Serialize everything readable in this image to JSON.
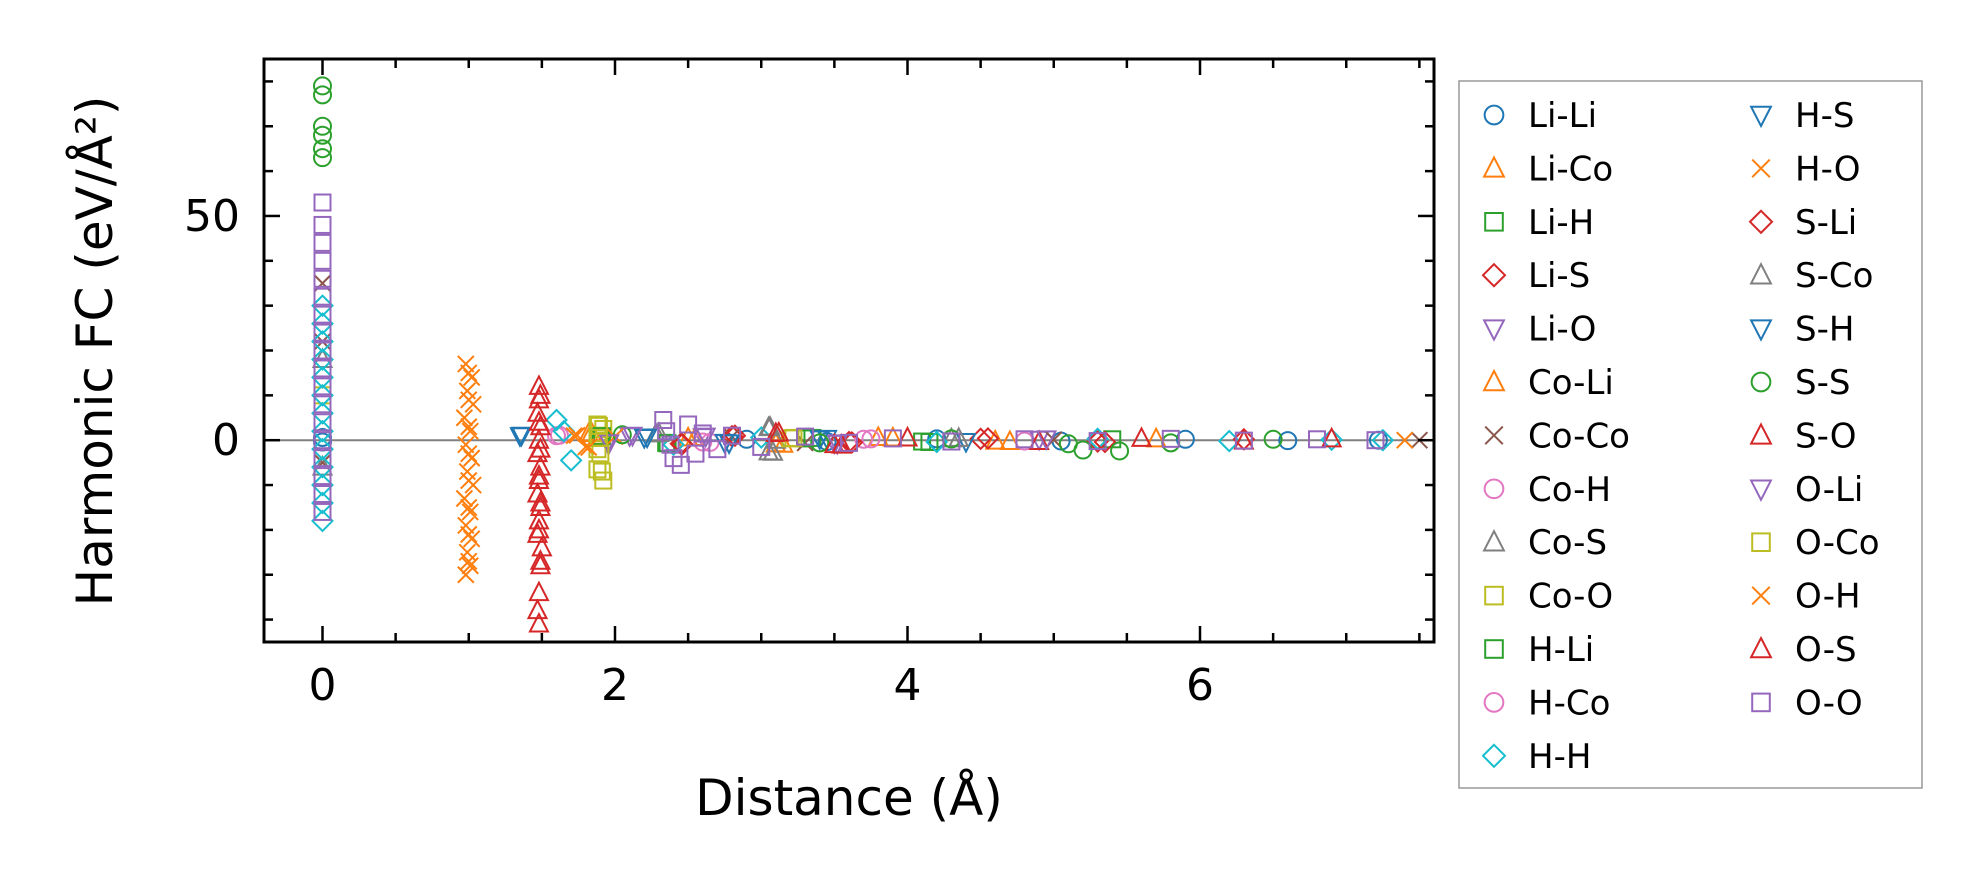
{
  "chart_data": {
    "type": "scatter",
    "title": "",
    "xlabel": "Distance (Å)",
    "ylabel": "Harmonic FC (eV/Å²)",
    "xlim": [
      -0.4,
      7.6
    ],
    "ylim": [
      -45,
      85
    ],
    "xticks": [
      0,
      2,
      4,
      6
    ],
    "xtick_labels": [
      "0",
      "2",
      "4",
      "6"
    ],
    "yticks": [
      0,
      50
    ],
    "ytick_labels": [
      "0",
      "50"
    ],
    "reference_line_y": 0,
    "grid": false,
    "legend_placement": "outside-right",
    "legend_columns": 2,
    "series": [
      {
        "name": "Li-Li",
        "marker": "circle",
        "color": "#1f77b4",
        "points": [
          [
            0,
            0.6
          ],
          [
            0,
            -0.4
          ],
          [
            2.9,
            0.2
          ],
          [
            3.45,
            -0.3
          ],
          [
            4.2,
            0.3
          ],
          [
            5.05,
            -0.2
          ],
          [
            5.9,
            0.2
          ],
          [
            6.6,
            -0.1
          ],
          [
            7.22,
            0.0
          ]
        ]
      },
      {
        "name": "Li-Co",
        "marker": "triangle-up",
        "color": "#ff7f0e",
        "points": [
          [
            1.82,
            1.5
          ],
          [
            2.5,
            0.5
          ],
          [
            3.1,
            -0.8
          ],
          [
            3.8,
            0.6
          ],
          [
            4.6,
            -0.2
          ],
          [
            5.7,
            0.3
          ]
        ]
      },
      {
        "name": "Li-H",
        "marker": "square",
        "color": "#2ca02c",
        "points": [
          [
            1.9,
            0.8
          ],
          [
            2.35,
            -0.6
          ],
          [
            3.3,
            0.4
          ],
          [
            4.1,
            -0.3
          ],
          [
            5.4,
            0.2
          ]
        ]
      },
      {
        "name": "Li-S",
        "marker": "diamond",
        "color": "#d62728",
        "points": [
          [
            2.45,
            -0.8
          ],
          [
            2.8,
            0.9
          ],
          [
            3.6,
            -0.4
          ],
          [
            4.5,
            0.3
          ],
          [
            5.3,
            -0.3
          ],
          [
            6.3,
            0.2
          ]
        ]
      },
      {
        "name": "Li-O",
        "marker": "triangle-down",
        "color": "#9467bd",
        "points": [
          [
            1.95,
            -0.5
          ],
          [
            2.1,
            1.0
          ],
          [
            2.6,
            0.8
          ],
          [
            3.5,
            -0.6
          ],
          [
            4.9,
            0.2
          ]
        ]
      },
      {
        "name": "Co-Li",
        "marker": "triangle-up",
        "color": "#ff7f0e",
        "points": [
          [
            1.84,
            1.6
          ],
          [
            2.55,
            0.6
          ],
          [
            3.15,
            -0.9
          ],
          [
            3.9,
            0.5
          ],
          [
            4.7,
            -0.3
          ]
        ]
      },
      {
        "name": "Co-Co",
        "marker": "x",
        "color": "#8c564b",
        "points": [
          [
            0,
            35
          ],
          [
            0,
            22
          ],
          [
            0,
            -5
          ],
          [
            2.8,
            0.8
          ],
          [
            3.3,
            -0.6
          ],
          [
            5.0,
            0.1
          ],
          [
            7.5,
            0.0
          ]
        ]
      },
      {
        "name": "Co-H",
        "marker": "circle",
        "color": "#e377c2",
        "points": [
          [
            1.6,
            1.0
          ],
          [
            2.6,
            -0.4
          ],
          [
            3.7,
            0.2
          ],
          [
            4.8,
            -0.2
          ]
        ]
      },
      {
        "name": "Co-S",
        "marker": "triangle-up",
        "color": "#7f7f7f",
        "points": [
          [
            0,
            18
          ],
          [
            0,
            -6
          ],
          [
            2.28,
            1.4
          ],
          [
            3.05,
            2.8
          ],
          [
            3.05,
            -2.6
          ],
          [
            3.1,
            0.0
          ],
          [
            4.3,
            0.3
          ]
        ]
      },
      {
        "name": "Co-O",
        "marker": "square",
        "color": "#bcbd22",
        "points": [
          [
            0,
            10
          ],
          [
            1.88,
            3.5
          ],
          [
            1.88,
            1.0
          ],
          [
            1.88,
            -2.0
          ],
          [
            1.88,
            -6.5
          ],
          [
            1.92,
            -9.0
          ],
          [
            1.92,
            2.5
          ],
          [
            3.2,
            0.4
          ]
        ]
      },
      {
        "name": "H-Li",
        "marker": "square",
        "color": "#2ca02c",
        "points": [
          [
            1.91,
            0.9
          ],
          [
            2.36,
            -0.7
          ],
          [
            3.35,
            0.5
          ],
          [
            4.15,
            -0.4
          ]
        ]
      },
      {
        "name": "H-Co",
        "marker": "circle",
        "color": "#e377c2",
        "points": [
          [
            1.62,
            1.1
          ],
          [
            2.65,
            -0.5
          ],
          [
            3.75,
            0.3
          ]
        ]
      },
      {
        "name": "H-H",
        "marker": "diamond",
        "color": "#17becf",
        "points": [
          [
            0,
            30
          ],
          [
            0,
            26
          ],
          [
            0,
            22
          ],
          [
            0,
            18
          ],
          [
            0,
            14
          ],
          [
            0,
            10
          ],
          [
            0,
            6
          ],
          [
            0,
            2
          ],
          [
            0,
            -2
          ],
          [
            0,
            -6
          ],
          [
            0,
            -10
          ],
          [
            0,
            -14
          ],
          [
            0,
            -18
          ],
          [
            1.6,
            4.5
          ],
          [
            1.7,
            -4.5
          ],
          [
            1.65,
            2.0
          ],
          [
            2.4,
            -1.0
          ],
          [
            3.0,
            0.6
          ],
          [
            4.2,
            -0.4
          ],
          [
            5.3,
            0.3
          ],
          [
            6.2,
            -0.2
          ],
          [
            6.9,
            0.1
          ],
          [
            7.25,
            0.0
          ]
        ]
      },
      {
        "name": "H-S",
        "marker": "triangle-down",
        "color": "#1f77b4",
        "points": [
          [
            1.35,
            1.0
          ],
          [
            2.2,
            0.6
          ],
          [
            2.75,
            -0.5
          ],
          [
            3.4,
            0.3
          ],
          [
            4.4,
            -0.3
          ]
        ]
      },
      {
        "name": "H-O",
        "marker": "x",
        "color": "#ff7f0e",
        "points": [
          [
            0.98,
            17
          ],
          [
            1.02,
            14
          ],
          [
            0.99,
            11
          ],
          [
            1.03,
            8
          ],
          [
            0.97,
            5
          ],
          [
            1.01,
            2
          ],
          [
            0.98,
            -1
          ],
          [
            1.02,
            -4
          ],
          [
            0.99,
            -7
          ],
          [
            1.03,
            -10
          ],
          [
            0.97,
            -13
          ],
          [
            1.01,
            -16
          ],
          [
            0.98,
            -19
          ],
          [
            1.02,
            -22
          ],
          [
            0.99,
            -25
          ],
          [
            1.01,
            -28
          ],
          [
            0.98,
            -30
          ],
          [
            1.72,
            1.0
          ],
          [
            1.8,
            -1.5
          ],
          [
            2.0,
            0.8
          ],
          [
            7.4,
            0.0
          ]
        ]
      },
      {
        "name": "S-Li",
        "marker": "diamond",
        "color": "#d62728",
        "points": [
          [
            2.46,
            -0.9
          ],
          [
            2.82,
            1.0
          ],
          [
            3.62,
            -0.5
          ],
          [
            4.55,
            0.4
          ],
          [
            5.35,
            -0.4
          ]
        ]
      },
      {
        "name": "S-Co",
        "marker": "triangle-up",
        "color": "#7f7f7f",
        "points": [
          [
            2.3,
            1.5
          ],
          [
            3.06,
            2.9
          ],
          [
            3.08,
            -2.7
          ],
          [
            4.35,
            0.4
          ]
        ]
      },
      {
        "name": "S-H",
        "marker": "triangle-down",
        "color": "#1f77b4",
        "points": [
          [
            1.36,
            1.1
          ],
          [
            2.22,
            0.7
          ],
          [
            2.78,
            -0.6
          ],
          [
            3.45,
            0.4
          ]
        ]
      },
      {
        "name": "S-S",
        "marker": "circle",
        "color": "#2ca02c",
        "points": [
          [
            0,
            79
          ],
          [
            0,
            77
          ],
          [
            0,
            70
          ],
          [
            0,
            68
          ],
          [
            0,
            65
          ],
          [
            0,
            63
          ],
          [
            2.05,
            1.2
          ],
          [
            3.4,
            -0.6
          ],
          [
            4.3,
            0.3
          ],
          [
            5.1,
            -0.8
          ],
          [
            5.2,
            -2.2
          ],
          [
            5.45,
            -2.4
          ],
          [
            5.8,
            -0.6
          ],
          [
            6.5,
            0.2
          ]
        ]
      },
      {
        "name": "S-O",
        "marker": "triangle-up",
        "color": "#d62728",
        "points": [
          [
            1.48,
            12
          ],
          [
            1.48,
            9
          ],
          [
            1.47,
            6
          ],
          [
            1.49,
            3
          ],
          [
            1.48,
            0
          ],
          [
            1.47,
            -3
          ],
          [
            1.49,
            -6
          ],
          [
            1.48,
            -9
          ],
          [
            1.47,
            -12
          ],
          [
            1.49,
            -15
          ],
          [
            1.48,
            -18
          ],
          [
            1.47,
            -21
          ],
          [
            1.5,
            -24
          ],
          [
            1.49,
            -28
          ],
          [
            1.48,
            -34
          ],
          [
            1.47,
            -38
          ],
          [
            1.48,
            -41
          ],
          [
            3.1,
            1.5
          ],
          [
            3.5,
            -1.0
          ],
          [
            4.0,
            0.5
          ],
          [
            4.9,
            -0.3
          ],
          [
            5.6,
            0.4
          ],
          [
            6.3,
            -0.2
          ],
          [
            6.9,
            0.3
          ]
        ]
      },
      {
        "name": "O-Li",
        "marker": "triangle-down",
        "color": "#9467bd",
        "points": [
          [
            1.96,
            -0.6
          ],
          [
            2.12,
            1.1
          ],
          [
            2.62,
            0.9
          ],
          [
            3.52,
            -0.7
          ],
          [
            4.95,
            0.3
          ]
        ]
      },
      {
        "name": "O-Co",
        "marker": "square",
        "color": "#bcbd22",
        "points": [
          [
            1.89,
            3.2
          ],
          [
            1.89,
            0.5
          ],
          [
            1.9,
            -3.0
          ],
          [
            1.91,
            -7.0
          ],
          [
            3.22,
            0.5
          ]
        ]
      },
      {
        "name": "O-H",
        "marker": "x",
        "color": "#ff7f0e",
        "points": [
          [
            1.0,
            15
          ],
          [
            1.0,
            9
          ],
          [
            1.0,
            3
          ],
          [
            1.0,
            -3
          ],
          [
            1.0,
            -9
          ],
          [
            1.0,
            -15
          ],
          [
            1.0,
            -21
          ],
          [
            1.0,
            -27
          ],
          [
            1.74,
            1.1
          ],
          [
            1.82,
            -1.6
          ]
        ]
      },
      {
        "name": "O-S",
        "marker": "triangle-up",
        "color": "#d62728",
        "points": [
          [
            1.49,
            10
          ],
          [
            1.48,
            4
          ],
          [
            1.49,
            -2
          ],
          [
            1.48,
            -8
          ],
          [
            1.49,
            -14
          ],
          [
            1.48,
            -20
          ],
          [
            1.49,
            -27
          ],
          [
            3.12,
            1.6
          ],
          [
            3.55,
            -1.1
          ]
        ]
      },
      {
        "name": "O-O",
        "marker": "square",
        "color": "#9467bd",
        "points": [
          [
            0,
            53
          ],
          [
            0,
            48
          ],
          [
            0,
            44
          ],
          [
            0,
            40
          ],
          [
            0,
            36
          ],
          [
            0,
            32
          ],
          [
            0,
            28
          ],
          [
            0,
            24
          ],
          [
            0,
            20
          ],
          [
            0,
            16
          ],
          [
            0,
            12
          ],
          [
            0,
            8
          ],
          [
            0,
            4
          ],
          [
            0,
            0
          ],
          [
            0,
            -4
          ],
          [
            0,
            -8
          ],
          [
            0,
            -12
          ],
          [
            0,
            -16
          ],
          [
            2.33,
            4.5
          ],
          [
            2.35,
            2.0
          ],
          [
            2.38,
            -1.0
          ],
          [
            2.4,
            -4.0
          ],
          [
            2.45,
            -5.5
          ],
          [
            2.5,
            3.5
          ],
          [
            2.55,
            -3.0
          ],
          [
            2.6,
            1.5
          ],
          [
            2.7,
            -2.0
          ],
          [
            2.8,
            1.0
          ],
          [
            3.0,
            -1.5
          ],
          [
            3.3,
            0.8
          ],
          [
            3.6,
            -0.6
          ],
          [
            3.9,
            0.4
          ],
          [
            4.3,
            -0.3
          ],
          [
            4.8,
            0.2
          ],
          [
            5.3,
            -0.2
          ],
          [
            5.8,
            0.3
          ],
          [
            6.3,
            -0.1
          ],
          [
            6.8,
            0.2
          ],
          [
            7.2,
            0.0
          ]
        ]
      }
    ]
  }
}
